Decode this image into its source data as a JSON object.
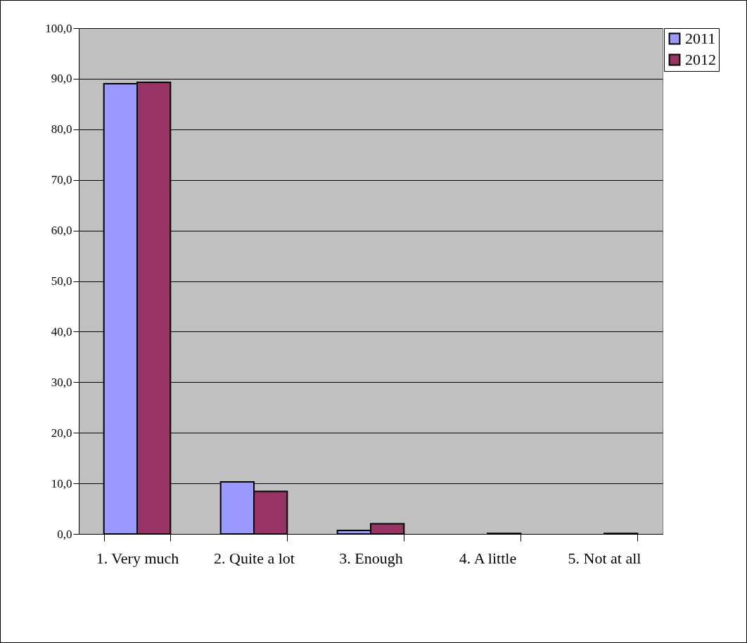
{
  "chart_data": {
    "type": "bar",
    "categories": [
      "1. Very much",
      "2. Quite a lot",
      "3.  Enough",
      "4. A little",
      "5. Not at all"
    ],
    "series": [
      {
        "name": "2011",
        "color": "#9999ff",
        "values": [
          89.0,
          10.3,
          0.7,
          0,
          0
        ]
      },
      {
        "name": "2012",
        "color": "#993366",
        "values": [
          89.3,
          8.4,
          2.0,
          0.1,
          0.1
        ]
      }
    ],
    "ylim": [
      0,
      100
    ],
    "yticks": [
      {
        "value": 0,
        "label": "0,0"
      },
      {
        "value": 10,
        "label": "10,0"
      },
      {
        "value": 20,
        "label": "20,0"
      },
      {
        "value": 30,
        "label": "30,0"
      },
      {
        "value": 40,
        "label": "40,0"
      },
      {
        "value": 50,
        "label": "50,0"
      },
      {
        "value": 60,
        "label": "60,0"
      },
      {
        "value": 70,
        "label": "70,0"
      },
      {
        "value": 80,
        "label": "80,0"
      },
      {
        "value": 90,
        "label": "90,0"
      },
      {
        "value": 100,
        "label": "100,0"
      }
    ],
    "grid": "y",
    "legend": "right"
  }
}
